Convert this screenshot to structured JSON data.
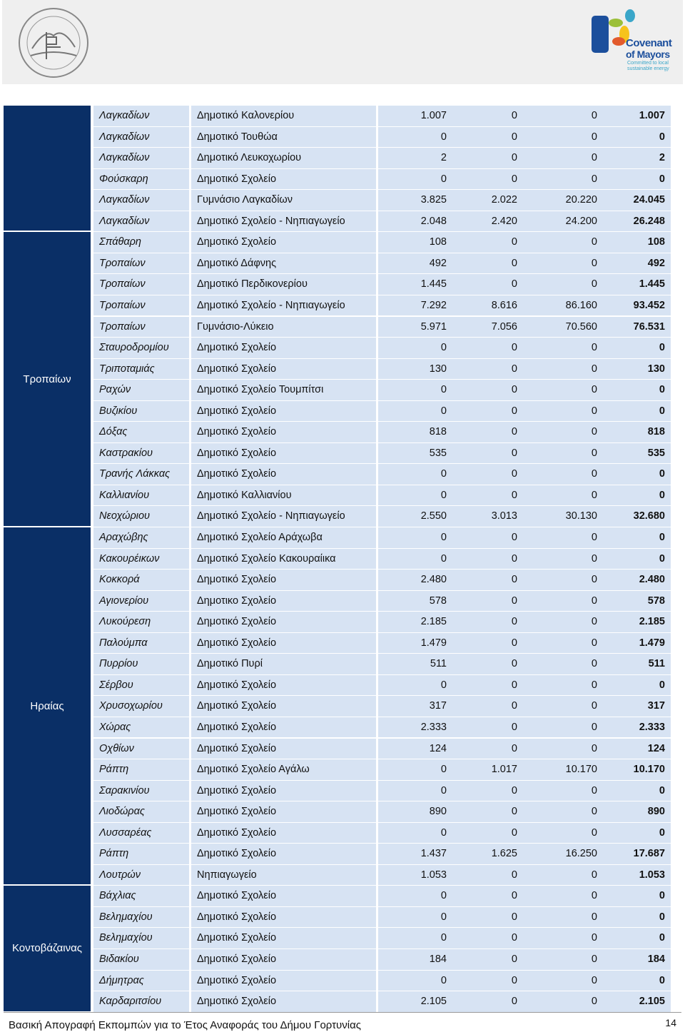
{
  "header": {
    "logo": {
      "title": "Covenant",
      "subtitle": "of Mayors",
      "tagline1": "Committed to local",
      "tagline2": "sustainable energy"
    }
  },
  "table": {
    "sections": [
      {
        "rows": [
          [
            "Λαγκαδίων",
            "Δημοτικό Καλονερίου",
            "1.007",
            "0",
            "0",
            "1.007"
          ],
          [
            "Λαγκαδίων",
            "Δημοτικό Τουθώα",
            "0",
            "0",
            "0",
            "0"
          ],
          [
            "Λαγκαδίων",
            "Δημοτικό Λευκοχωρίου",
            "2",
            "0",
            "0",
            "2"
          ],
          [
            "Φούσκαρη",
            "Δημοτικό Σχολείο",
            "0",
            "0",
            "0",
            "0"
          ],
          [
            "Λαγκαδίων",
            "Γυμνάσιο Λαγκαδίων",
            "3.825",
            "2.022",
            "20.220",
            "24.045"
          ],
          [
            "Λαγκαδίων",
            "Δημοτικό Σχολείο - Νηπιαγωγείο",
            "2.048",
            "2.420",
            "24.200",
            "26.248"
          ]
        ]
      },
      {
        "name": "Τροπαίων",
        "rows": [
          [
            "Σπάθαρη",
            "Δημοτικό Σχολείο",
            "108",
            "0",
            "0",
            "108"
          ],
          [
            "Τροπαίων",
            "Δημοτικό Δάφνης",
            "492",
            "0",
            "0",
            "492"
          ],
          [
            "Τροπαίων",
            "Δημοτικό Περδικονερίου",
            "1.445",
            "0",
            "0",
            "1.445"
          ],
          [
            "Τροπαίων",
            "Δημοτικό Σχολείο - Νηπιαγωγείο",
            "7.292",
            "8.616",
            "86.160",
            "93.452"
          ],
          [
            "Τροπαίων",
            "Γυμνάσιο-Λύκειο",
            "5.971",
            "7.056",
            "70.560",
            "76.531"
          ],
          [
            "Σταυροδρομίου",
            "Δημοτικό Σχολείο",
            "0",
            "0",
            "0",
            "0"
          ],
          [
            "Τριποταμιάς",
            "Δημοτικό Σχολείο",
            "130",
            "0",
            "0",
            "130"
          ],
          [
            "Ραχών",
            "Δημοτικό Σχολείο Τουμπίτσι",
            "0",
            "0",
            "0",
            "0"
          ],
          [
            "Βυζικίου",
            "Δημοτικό Σχολείο",
            "0",
            "0",
            "0",
            "0"
          ],
          [
            "Δόξας",
            "Δημοτικό Σχολείο",
            "818",
            "0",
            "0",
            "818"
          ],
          [
            "Καστρακίου",
            "Δημοτικό Σχολείο",
            "535",
            "0",
            "0",
            "535"
          ],
          [
            "Τρανής Λάκκας",
            "Δημοτικό Σχολείο",
            "0",
            "0",
            "0",
            "0"
          ],
          [
            "Καλλιανίου",
            "Δημοτικό Καλλιανίου",
            "0",
            "0",
            "0",
            "0"
          ],
          [
            "Νεοχώριου",
            "Δημοτικό Σχολείο - Νηπιαγωγείο",
            "2.550",
            "3.013",
            "30.130",
            "32.680"
          ]
        ]
      },
      {
        "name": "Ηραίας",
        "rows": [
          [
            "Αραχώβης",
            "Δημοτικό Σχολείο Αράχωβα",
            "0",
            "0",
            "0",
            "0"
          ],
          [
            "Κακουρέικων",
            "Δημοτικό Σχολείο Κακουραίικα",
            "0",
            "0",
            "0",
            "0"
          ],
          [
            "Κοκκορά",
            "Δημοτικό Σχολείο",
            "2.480",
            "0",
            "0",
            "2.480"
          ],
          [
            "Αγιονερίου",
            "Δημοτικο Σχολείο",
            "578",
            "0",
            "0",
            "578"
          ],
          [
            "Λυκούρεση",
            "Δημοτικό Σχολείο",
            "2.185",
            "0",
            "0",
            "2.185"
          ],
          [
            "Παλούμπα",
            "Δημοτικό Σχολείο",
            "1.479",
            "0",
            "0",
            "1.479"
          ],
          [
            "Πυρρίου",
            "Δημοτικό Πυρί",
            "511",
            "0",
            "0",
            "511"
          ],
          [
            "Σέρβου",
            "Δημοτικό Σχολείο",
            "0",
            "0",
            "0",
            "0"
          ],
          [
            "Χρυσοχωρίου",
            "Δημοτικό Σχολείο",
            "317",
            "0",
            "0",
            "317"
          ],
          [
            "Χώρας",
            "Δημοτικό Σχολείο",
            "2.333",
            "0",
            "0",
            "2.333"
          ],
          [
            "Οχθίων",
            "Δημοτικό Σχολείο",
            "124",
            "0",
            "0",
            "124"
          ],
          [
            "Ράπτη",
            "Δημοτικό Σχολείο Αγάλω",
            "0",
            "1.017",
            "10.170",
            "10.170"
          ],
          [
            "Σαρακινίου",
            "Δημοτικό Σχολείο",
            "0",
            "0",
            "0",
            "0"
          ],
          [
            "Λιοδώρας",
            "Δημοτικό Σχολείο",
            "890",
            "0",
            "0",
            "890"
          ],
          [
            "Λυσσαρέας",
            "Δημοτικό Σχολείο",
            "0",
            "0",
            "0",
            "0"
          ],
          [
            "Ράπτη",
            "Δημοτικό Σχολείο",
            "1.437",
            "1.625",
            "16.250",
            "17.687"
          ],
          [
            "Λουτρών",
            "Νηπιαγωγείο",
            "1.053",
            "0",
            "0",
            "1.053"
          ]
        ]
      },
      {
        "name": "Κοντοβάζαινας",
        "rows": [
          [
            "Βάχλιας",
            "Δημοτικό Σχολείο",
            "0",
            "0",
            "0",
            "0"
          ],
          [
            "Βελημαχίου",
            "Δημοτικό Σχολείο",
            "0",
            "0",
            "0",
            "0"
          ],
          [
            "Βελημαχίου",
            "Δημοτικό Σχολείο",
            "0",
            "0",
            "0",
            "0"
          ],
          [
            "Βιδακίου",
            "Δημοτικό Σχολείο",
            "184",
            "0",
            "0",
            "184"
          ],
          [
            "Δήμητρας",
            "Δημοτικό Σχολείο",
            "0",
            "0",
            "0",
            "0"
          ],
          [
            "Καρδαριτσίου",
            "Δημοτικό Σχολείο",
            "2.105",
            "0",
            "0",
            "2.105"
          ]
        ]
      }
    ]
  },
  "footer": {
    "text": "Βασική Απογραφή Εκπομπών για το Έτος Αναφοράς του Δήμου Γορτυνίας",
    "page": "14"
  }
}
